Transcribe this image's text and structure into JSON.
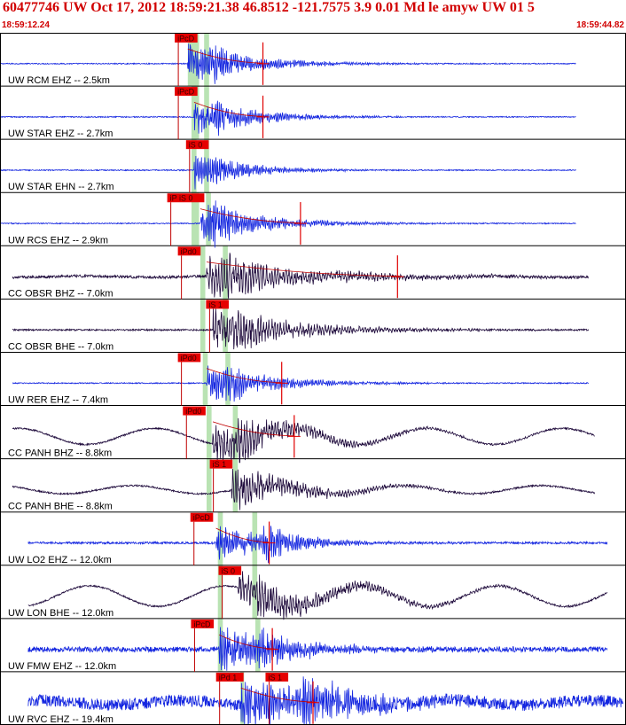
{
  "header": {
    "title": "60477746 UW Oct 17, 2012 18:59:21.38   46.8512 -121.7575  3.9 0.01 Md le amyw UW 01   5",
    "start_time": "18:59:12.24",
    "end_time": "18:59:44.82"
  },
  "colors": {
    "accent": "#d10000",
    "trace_blue": "#1426e0",
    "trace_dark": "#1f0b3c",
    "pick_box": "#e60000",
    "window_green": "#b9e3b3"
  },
  "traces": [
    {
      "label": "UW RCM EHZ -- 2.5km",
      "color": "blue",
      "amp": 0.78,
      "noise": 0.02,
      "onset": 0.3,
      "sOnset": 0.33,
      "decay": 0.1,
      "freq": 14,
      "long": 0,
      "startFrac": 0.0,
      "endFrac": 0.92,
      "picks": [
        {
          "label": "iPcD",
          "pos": 0.282
        }
      ],
      "windows": [
        [
          0.3,
          0.318
        ],
        [
          0.326,
          0.334
        ]
      ],
      "codaEnd": 0.42,
      "marker": 0.42
    },
    {
      "label": "UW STAR EHZ -- 2.7km",
      "color": "blue",
      "amp": 0.78,
      "noise": 0.02,
      "onset": 0.31,
      "sOnset": 0.33,
      "decay": 0.09,
      "freq": 14,
      "long": 0,
      "startFrac": 0.0,
      "endFrac": 0.92,
      "picks": [
        {
          "label": "iPcD",
          "pos": 0.282
        }
      ],
      "windows": [
        [
          0.306,
          0.318
        ],
        [
          0.326,
          0.334
        ]
      ],
      "codaEnd": 0.42,
      "marker": 0.42
    },
    {
      "label": "UW STAR EHN -- 2.7km",
      "color": "blue",
      "amp": 0.72,
      "noise": 0.02,
      "onset": 0.31,
      "sOnset": 0.33,
      "decay": 0.08,
      "freq": 14,
      "long": 0,
      "startFrac": 0.0,
      "endFrac": 0.92,
      "picks": [
        {
          "label": "iS 0",
          "pos": 0.3
        }
      ],
      "windows": [
        [
          0.306,
          0.314
        ],
        [
          0.326,
          0.334
        ]
      ],
      "codaEnd": 0,
      "marker": 0
    },
    {
      "label": "UW RCS EHZ -- 2.9km",
      "color": "blue",
      "amp": 0.78,
      "noise": 0.02,
      "onset": 0.32,
      "sOnset": 0.34,
      "decay": 0.1,
      "freq": 14,
      "long": 0,
      "startFrac": 0.0,
      "endFrac": 0.92,
      "picks": [
        {
          "label": "iP iS 0",
          "pos": 0.27
        }
      ],
      "windows": [
        [
          0.306,
          0.318
        ],
        [
          0.329,
          0.337
        ]
      ],
      "codaEnd": 0.48,
      "marker": 0.48
    },
    {
      "label": "CC OBSR BHZ -- 7.0km",
      "color": "dark",
      "amp": 0.82,
      "noise": 0.05,
      "onset": 0.33,
      "sOnset": 0.36,
      "decay": 0.16,
      "freq": 9,
      "long": 0.04,
      "startFrac": 0.02,
      "endFrac": 0.94,
      "picks": [
        {
          "label": "iPd0",
          "pos": 0.287
        }
      ],
      "windows": [
        [
          0.32,
          0.328
        ],
        [
          0.356,
          0.364
        ]
      ],
      "codaEnd": 0.64,
      "marker": 0.635
    },
    {
      "label": "CC OBSR BHE -- 7.0km",
      "color": "dark",
      "amp": 0.82,
      "noise": 0.03,
      "onset": 0.34,
      "sOnset": 0.37,
      "decay": 0.13,
      "freq": 9,
      "long": 0,
      "startFrac": 0.02,
      "endFrac": 0.94,
      "picks": [
        {
          "label": "iS 1",
          "pos": 0.332
        }
      ],
      "windows": [
        [
          0.32,
          0.328
        ],
        [
          0.356,
          0.364
        ]
      ],
      "codaEnd": 0,
      "marker": 0
    },
    {
      "label": "UW RER EHZ -- 7.4km",
      "color": "blue",
      "amp": 0.76,
      "noise": 0.02,
      "onset": 0.33,
      "sOnset": 0.36,
      "decay": 0.1,
      "freq": 13,
      "long": 0,
      "startFrac": 0.02,
      "endFrac": 0.94,
      "picks": [
        {
          "label": "iPd0",
          "pos": 0.287
        }
      ],
      "windows": [
        [
          0.324,
          0.332
        ],
        [
          0.36,
          0.368
        ]
      ],
      "codaEnd": 0.45,
      "marker": 0.45
    },
    {
      "label": "CC PANH BHZ -- 8.8km",
      "color": "dark",
      "amp": 0.8,
      "noise": 0.03,
      "onset": 0.34,
      "sOnset": 0.38,
      "decay": 0.13,
      "freq": 9,
      "long": 0.55,
      "startFrac": 0.02,
      "endFrac": 0.95,
      "picks": [
        {
          "label": "iPd0",
          "pos": 0.295
        }
      ],
      "windows": [
        [
          0.33,
          0.338
        ],
        [
          0.372,
          0.38
        ]
      ],
      "codaEnd": 0.47,
      "marker": 0.47
    },
    {
      "label": "CC PANH BHE -- 8.8km",
      "color": "dark",
      "amp": 0.8,
      "noise": 0.03,
      "onset": 0.37,
      "sOnset": 0.38,
      "decay": 0.11,
      "freq": 9,
      "long": 0.28,
      "startFrac": 0.02,
      "endFrac": 0.95,
      "picks": [
        {
          "label": "iS 1",
          "pos": 0.338
        }
      ],
      "windows": [
        [
          0.33,
          0.338
        ],
        [
          0.372,
          0.38
        ]
      ],
      "codaEnd": 0,
      "marker": 0
    },
    {
      "label": "UW LO2 EHZ -- 12.0km",
      "color": "blue",
      "amp": 0.72,
      "noise": 0.04,
      "onset": 0.345,
      "sOnset": 0.42,
      "decay": 0.1,
      "freq": 14,
      "long": 0,
      "startFrac": 0.045,
      "endFrac": 0.97,
      "picks": [
        {
          "label": "iPcD",
          "pos": 0.307
        }
      ],
      "windows": [
        [
          0.348,
          0.356
        ],
        [
          0.403,
          0.411
        ]
      ],
      "codaEnd": 0.43,
      "marker": 0.43
    },
    {
      "label": "UW LON BHE -- 12.0km",
      "color": "dark",
      "amp": 0.72,
      "noise": 0.03,
      "onset": 0.38,
      "sOnset": 0.41,
      "decay": 0.15,
      "freq": 9,
      "long": 0.7,
      "startFrac": 0.045,
      "endFrac": 0.97,
      "picks": [
        {
          "label": "iS 0",
          "pos": 0.352
        }
      ],
      "windows": [
        [
          0.348,
          0.356
        ],
        [
          0.403,
          0.411
        ]
      ],
      "codaEnd": 0,
      "marker": 0
    },
    {
      "label": "UW FMW EHZ -- 12.0km",
      "color": "blue",
      "amp": 0.85,
      "noise": 0.1,
      "onset": 0.35,
      "sOnset": 0.41,
      "decay": 0.11,
      "freq": 14,
      "long": 0,
      "startFrac": 0.045,
      "endFrac": 0.97,
      "picks": [
        {
          "label": "iPcD",
          "pos": 0.308
        }
      ],
      "windows": [
        [
          0.348,
          0.356
        ],
        [
          0.408,
          0.416
        ]
      ],
      "codaEnd": 0.44,
      "marker": 0.435
    },
    {
      "label": "UW RVC EHZ -- 19.4km",
      "color": "blue",
      "amp": 0.95,
      "noise": 0.22,
      "onset": 0.385,
      "sOnset": 0.48,
      "decay": 0.14,
      "freq": 14,
      "long": 0.15,
      "startFrac": 0.045,
      "endFrac": 0.995,
      "picks": [
        {
          "label": "iPd 1",
          "pos": 0.348
        },
        {
          "label": "iS 1",
          "pos": 0.427
        }
      ],
      "windows": [
        [
          0.384,
          0.39
        ]
      ],
      "codaEnd": 0.505,
      "marker": 0.5
    }
  ]
}
